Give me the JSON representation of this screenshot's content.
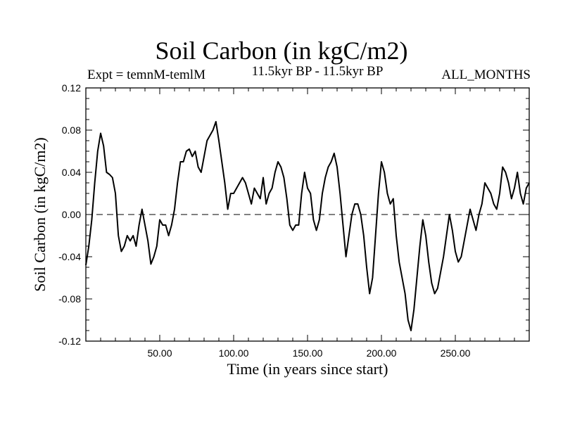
{
  "chart_data": {
    "type": "line",
    "title": "Soil Carbon (in kgC/m2)",
    "subtitle_left": "Expt = temnM-temlM",
    "subtitle_center": "11.5kyr BP - 11.5kyr BP",
    "subtitle_right": "ALL_MONTHS",
    "xlabel": "Time (in years since start)",
    "ylabel": "Soil Carbon (in kgC/m2)",
    "xlim": [
      0,
      300
    ],
    "ylim": [
      -0.12,
      0.12
    ],
    "x_ticks": [
      50,
      100,
      150,
      200,
      250
    ],
    "x_tick_labels": [
      "50.00",
      "100.00",
      "150.00",
      "200.00",
      "250.00"
    ],
    "y_ticks": [
      -0.12,
      -0.08,
      -0.04,
      0.0,
      0.04,
      0.08,
      0.12
    ],
    "y_tick_labels": [
      "-0.12",
      "-0.08",
      "-0.04",
      "0.00",
      "0.04",
      "0.08",
      "0.12"
    ],
    "reference_line": {
      "y": 0.0,
      "style": "dashed"
    },
    "series": [
      {
        "name": "Soil Carbon",
        "color": "#000000",
        "x": [
          0,
          2,
          4,
          6,
          8,
          10,
          12,
          14,
          16,
          18,
          20,
          22,
          24,
          26,
          28,
          30,
          32,
          34,
          36,
          38,
          40,
          42,
          44,
          46,
          48,
          50,
          52,
          54,
          56,
          58,
          60,
          62,
          64,
          66,
          68,
          70,
          72,
          74,
          76,
          78,
          80,
          82,
          84,
          86,
          88,
          90,
          92,
          94,
          96,
          98,
          100,
          102,
          104,
          106,
          108,
          110,
          112,
          114,
          116,
          118,
          120,
          122,
          124,
          126,
          128,
          130,
          132,
          134,
          136,
          138,
          140,
          142,
          144,
          146,
          148,
          150,
          152,
          154,
          156,
          158,
          160,
          162,
          164,
          166,
          168,
          170,
          172,
          174,
          176,
          178,
          180,
          182,
          184,
          186,
          188,
          190,
          192,
          194,
          196,
          198,
          200,
          202,
          204,
          206,
          208,
          210,
          212,
          214,
          216,
          218,
          220,
          222,
          224,
          226,
          228,
          230,
          232,
          234,
          236,
          238,
          240,
          242,
          244,
          246,
          248,
          250,
          252,
          254,
          256,
          258,
          260,
          262,
          264,
          266,
          268,
          270,
          272,
          274,
          276,
          278,
          280,
          282,
          284,
          286,
          288,
          290,
          292,
          294,
          296,
          298,
          300
        ],
        "values": [
          -0.048,
          -0.03,
          -0.005,
          0.03,
          0.06,
          0.077,
          0.065,
          0.04,
          0.038,
          0.035,
          0.02,
          -0.02,
          -0.035,
          -0.03,
          -0.02,
          -0.025,
          -0.02,
          -0.03,
          -0.01,
          0.005,
          -0.01,
          -0.025,
          -0.047,
          -0.04,
          -0.03,
          -0.005,
          -0.01,
          -0.01,
          -0.02,
          -0.01,
          0.005,
          0.03,
          0.05,
          0.05,
          0.06,
          0.062,
          0.055,
          0.06,
          0.045,
          0.04,
          0.055,
          0.07,
          0.075,
          0.08,
          0.088,
          0.07,
          0.05,
          0.03,
          0.005,
          0.02,
          0.02,
          0.025,
          0.03,
          0.035,
          0.03,
          0.02,
          0.01,
          0.025,
          0.02,
          0.015,
          0.035,
          0.01,
          0.02,
          0.025,
          0.04,
          0.05,
          0.045,
          0.035,
          0.015,
          -0.01,
          -0.015,
          -0.01,
          -0.01,
          0.02,
          0.04,
          0.025,
          0.02,
          -0.005,
          -0.015,
          -0.005,
          0.02,
          0.035,
          0.045,
          0.05,
          0.058,
          0.045,
          0.02,
          -0.01,
          -0.04,
          -0.02,
          0.0,
          0.01,
          0.01,
          0.0,
          -0.02,
          -0.05,
          -0.075,
          -0.06,
          -0.02,
          0.02,
          0.05,
          0.04,
          0.02,
          0.01,
          0.015,
          -0.02,
          -0.045,
          -0.06,
          -0.075,
          -0.1,
          -0.11,
          -0.09,
          -0.06,
          -0.03,
          -0.005,
          -0.02,
          -0.045,
          -0.065,
          -0.075,
          -0.07,
          -0.055,
          -0.04,
          -0.02,
          0.0,
          -0.015,
          -0.035,
          -0.045,
          -0.04,
          -0.025,
          -0.01,
          0.005,
          -0.005,
          -0.015,
          0.0,
          0.01,
          0.03,
          0.025,
          0.02,
          0.01,
          0.005,
          0.02,
          0.045,
          0.04,
          0.03,
          0.015,
          0.025,
          0.04,
          0.02,
          0.01,
          0.025,
          0.03
        ]
      }
    ]
  }
}
